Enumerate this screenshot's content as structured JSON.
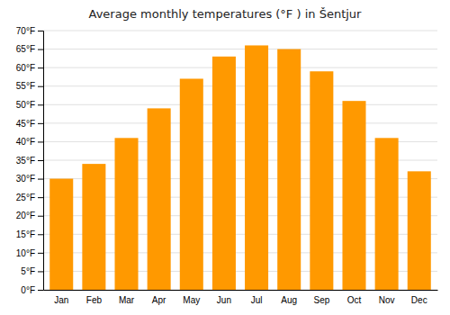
{
  "chart_data": {
    "type": "bar",
    "title": "Average monthly temperatures (°F ) in Šentjur",
    "categories": [
      "Jan",
      "Feb",
      "Mar",
      "Apr",
      "May",
      "Jun",
      "Jul",
      "Aug",
      "Sep",
      "Oct",
      "Nov",
      "Dec"
    ],
    "values": [
      30,
      34,
      41,
      49,
      57,
      63,
      66,
      65,
      59,
      51,
      41,
      32
    ],
    "color": "#FF9900",
    "ylim": [
      0,
      70
    ],
    "yticks": [
      {
        "value": 0,
        "label": "0°F"
      },
      {
        "value": 5,
        "label": "5°F"
      },
      {
        "value": 10,
        "label": "10°F"
      },
      {
        "value": 15,
        "label": "15°F"
      },
      {
        "value": 20,
        "label": "20°F"
      },
      {
        "value": 25,
        "label": "25°F"
      },
      {
        "value": 30,
        "label": "30°F"
      },
      {
        "value": 35,
        "label": "35°F"
      },
      {
        "value": 40,
        "label": "40°F"
      },
      {
        "value": 45,
        "label": "45°F"
      },
      {
        "value": 50,
        "label": "50°F"
      },
      {
        "value": 55,
        "label": "55°F"
      },
      {
        "value": 60,
        "label": "60°F"
      },
      {
        "value": 65,
        "label": "65°F"
      },
      {
        "value": 70,
        "label": "70°F"
      }
    ],
    "grid": true
  }
}
